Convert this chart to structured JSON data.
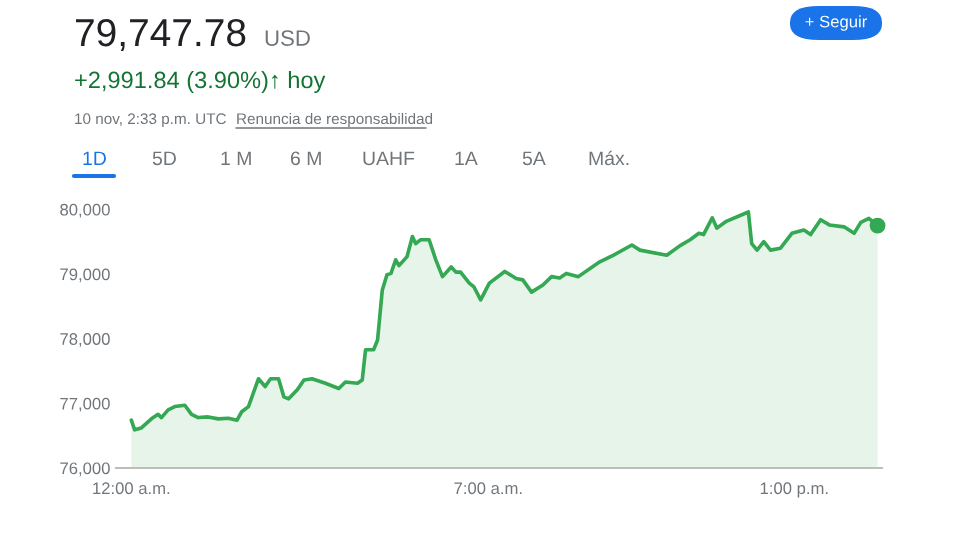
{
  "chart_data": {
    "type": "area",
    "title": "79,747.78",
    "subtitle": "+2,991.84 (3.90%)↑ hoy",
    "annotations": [
      "USD",
      "10 nov, 2:33 p.m. UTC",
      "Renuncia de responsabilidad",
      "1D",
      "5D",
      "1 M",
      "6 M",
      "UAHF",
      "1A",
      "5A",
      "Máx.",
      "+ Seguir"
    ],
    "series": [
      {
        "color": "#34a853",
        "x": [
          0,
          0.066,
          0.197,
          0.394,
          0.525,
          0.591,
          0.722,
          0.853,
          1.05,
          1.181,
          1.312,
          1.509,
          1.706,
          1.903,
          2.073,
          2.165,
          2.297,
          2.493,
          2.625,
          2.73,
          2.887,
          2.992,
          3.084,
          3.255,
          3.386,
          3.543,
          3.806,
          4.068,
          4.199,
          4.436,
          4.528,
          4.593,
          4.751,
          4.829,
          4.921,
          5.013,
          5.092,
          5.184,
          5.249,
          5.407,
          5.512,
          5.577,
          5.669,
          5.84,
          5.971,
          6.102,
          6.273,
          6.365,
          6.457,
          6.627,
          6.719,
          6.85,
          7.021,
          7.323,
          7.546,
          7.677,
          7.848,
          8.071,
          8.241,
          8.399,
          8.53,
          8.766,
          9.186,
          9.449,
          9.816,
          9.974,
          10.499,
          10.761,
          10.958,
          11.129,
          11.22,
          11.391,
          11.483,
          11.654,
          12.1,
          12.165,
          12.27,
          12.402,
          12.533,
          12.73,
          12.953,
          13.189,
          13.32,
          13.517,
          13.688,
          13.976,
          14.173,
          14.304,
          14.462,
          14.633
        ],
        "values": [
          76740,
          76590,
          76620,
          76760,
          76830,
          76780,
          76900,
          76950,
          76970,
          76830,
          76780,
          76790,
          76760,
          76770,
          76740,
          76870,
          76950,
          77380,
          77260,
          77380,
          77380,
          77100,
          77070,
          77210,
          77360,
          77380,
          77310,
          77230,
          77330,
          77310,
          77360,
          77830,
          77830,
          77980,
          78750,
          78990,
          79010,
          79220,
          79130,
          79270,
          79580,
          79470,
          79530,
          79530,
          79220,
          78960,
          79110,
          79030,
          79030,
          78860,
          78800,
          78600,
          78860,
          79040,
          78930,
          78910,
          78720,
          78830,
          78960,
          78940,
          79010,
          78960,
          79190,
          79290,
          79450,
          79370,
          79290,
          79440,
          79530,
          79630,
          79610,
          79870,
          79710,
          79810,
          79960,
          79470,
          79370,
          79500,
          79370,
          79400,
          79630,
          79680,
          79610,
          79840,
          79760,
          79730,
          79630,
          79800,
          79860,
          79750
        ]
      },
      {
        "type": "scatter",
        "color": "#34a853",
        "x": [
          14.633
        ],
        "values": [
          79750
        ],
        "marker": "circle"
      }
    ],
    "xlim": [
      -0.3,
      14.72
    ],
    "ylim": [
      76000,
      80000
    ],
    "xticks": [
      {
        "value": 0,
        "label": "12:00 a.m."
      },
      {
        "value": 7,
        "label": "7:00 a.m."
      },
      {
        "value": 13,
        "label": "1:00 p.m."
      }
    ],
    "yticks": [
      {
        "value": 76000,
        "label": "76,000"
      },
      {
        "value": 77000,
        "label": "77,000"
      },
      {
        "value": 78000,
        "label": "78,000"
      },
      {
        "value": 79000,
        "label": "79,000"
      },
      {
        "value": 80000,
        "label": "80,000"
      }
    ],
    "grid": false
  }
}
